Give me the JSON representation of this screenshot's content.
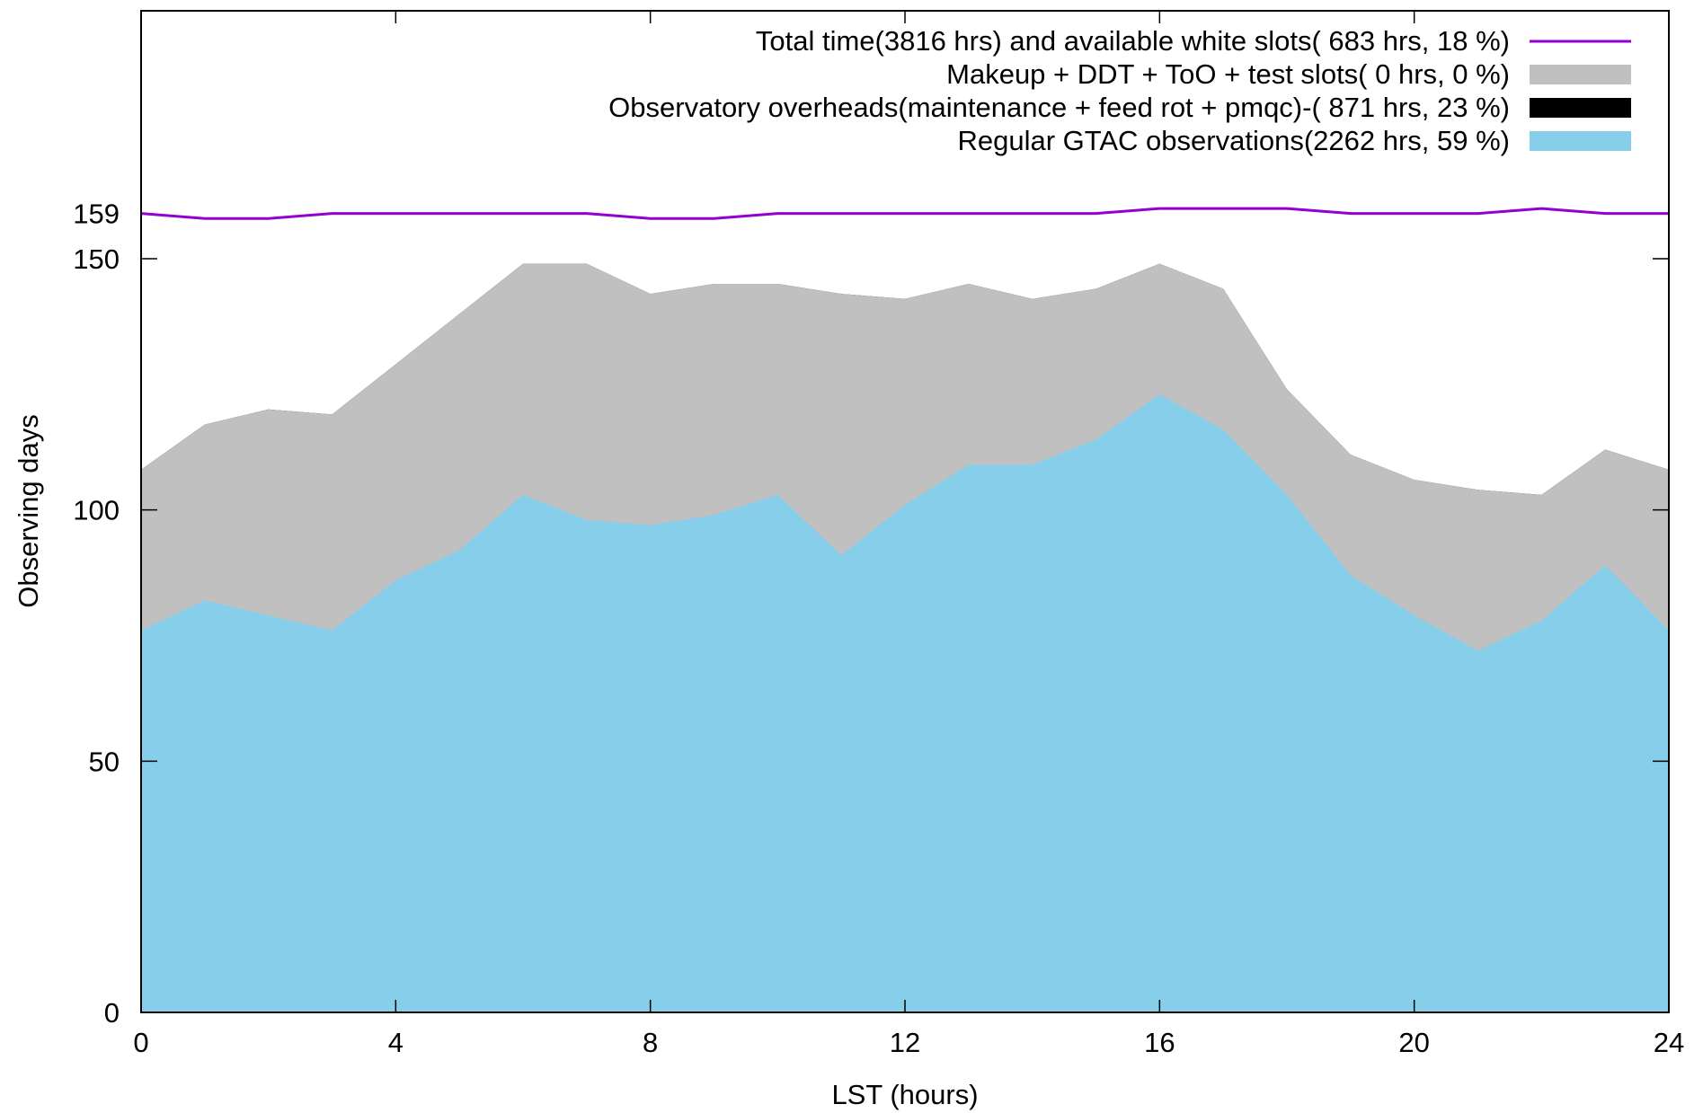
{
  "chart_data": {
    "type": "area",
    "xlabel": "LST (hours)",
    "ylabel": "Observing days",
    "xlim": [
      0,
      24
    ],
    "ylim": [
      0,
      150
    ],
    "x_ticks": [
      0,
      4,
      8,
      12,
      16,
      20,
      24
    ],
    "y_ticks": [
      0,
      50,
      100,
      150
    ],
    "extra_y_tick": 159,
    "x": [
      0,
      1,
      2,
      3,
      4,
      5,
      6,
      7,
      8,
      9,
      10,
      11,
      12,
      13,
      14,
      15,
      16,
      17,
      18,
      19,
      20,
      21,
      22,
      23,
      24
    ],
    "series": [
      {
        "name": "Regular GTAC observations(2262 hrs, 59 %)",
        "color": "#87ceeb",
        "style": "filled",
        "values": [
          76,
          82,
          79,
          76,
          86,
          92,
          103,
          98,
          97,
          99,
          103,
          91,
          101,
          109,
          109,
          114,
          123,
          116,
          103,
          87,
          79,
          72,
          78,
          89,
          76
        ]
      },
      {
        "name": "Observatory overheads(maintenance + feed rot + pmqc)-( 871 hrs, 23 %)",
        "color": "#000000",
        "style": "filled",
        "values": [
          108,
          117,
          120,
          119,
          129,
          139,
          149,
          149,
          143,
          145,
          145,
          143,
          142,
          145,
          142,
          144,
          149,
          144,
          124,
          111,
          106,
          104,
          103,
          112,
          108
        ]
      },
      {
        "name": "Makeup + DDT + ToO + test slots(   0 hrs,  0 %)",
        "color": "#c0c0c0",
        "style": "filled",
        "values": [
          108,
          117,
          120,
          119,
          129,
          139,
          149,
          149,
          143,
          145,
          145,
          143,
          142,
          145,
          142,
          144,
          149,
          144,
          124,
          111,
          106,
          104,
          103,
          112,
          108
        ]
      },
      {
        "name": "Total time(3816 hrs) and available white slots( 683 hrs, 18 %)",
        "color": "#9400d3",
        "style": "line",
        "values": [
          159,
          158,
          158,
          159,
          159,
          159,
          159,
          159,
          158,
          158,
          159,
          159,
          159,
          159,
          159,
          159,
          160,
          160,
          160,
          159,
          159,
          159,
          160,
          159,
          159
        ]
      }
    ],
    "legend_position": "top-right"
  }
}
